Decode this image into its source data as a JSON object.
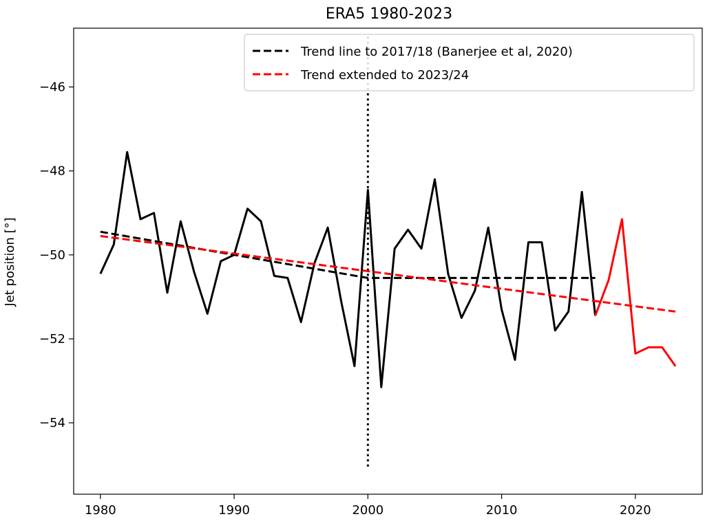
{
  "chart_data": {
    "type": "line",
    "title": "ERA5 1980-2023",
    "xlabel": "",
    "ylabel": "Jet position [°]",
    "xlim": [
      1978,
      2025
    ],
    "ylim": [
      -55.7,
      -44.6
    ],
    "xticks": [
      1980,
      1990,
      2000,
      2010,
      2020
    ],
    "yticks": [
      -46,
      -48,
      -50,
      -52,
      -54
    ],
    "ytick_labels": [
      "−46",
      "−48",
      "−50",
      "−52",
      "−54"
    ],
    "grid": false,
    "legend_position": "top-right",
    "series": [
      {
        "name": "",
        "style": "solid",
        "color": "#000000",
        "x": [
          1980,
          1981,
          1982,
          1983,
          1984,
          1985,
          1986,
          1987,
          1988,
          1989,
          1990,
          1991,
          1992,
          1993,
          1994,
          1995,
          1996,
          1997,
          1998,
          1999,
          2000,
          2001,
          2002,
          2003,
          2004,
          2005,
          2006,
          2007,
          2008,
          2009,
          2010,
          2011,
          2012,
          2013,
          2014,
          2015,
          2016,
          2017
        ],
        "y": [
          -50.45,
          -49.75,
          -47.55,
          -49.15,
          -49.0,
          -50.9,
          -49.2,
          -50.4,
          -51.4,
          -50.15,
          -50.0,
          -48.9,
          -49.2,
          -50.5,
          -50.55,
          -51.6,
          -50.2,
          -49.35,
          -51.1,
          -52.65,
          -48.45,
          -53.15,
          -49.85,
          -49.4,
          -49.85,
          -48.2,
          -50.45,
          -51.5,
          -50.85,
          -49.35,
          -51.3,
          -52.5,
          -49.7,
          -49.7,
          -51.8,
          -51.35,
          -48.5,
          -51.45
        ]
      },
      {
        "name": "",
        "style": "solid",
        "color": "#ff0000",
        "x": [
          2017,
          2018,
          2019,
          2020,
          2021,
          2022,
          2023
        ],
        "y": [
          -51.45,
          -50.6,
          -49.15,
          -52.35,
          -52.2,
          -52.2,
          -52.65
        ]
      },
      {
        "name": "Trend line to 2017/18 (Banerjee et al, 2020)",
        "style": "dashed",
        "color": "#000000",
        "x": [
          1980,
          2000,
          2017
        ],
        "y": [
          -49.45,
          -50.55,
          -50.55
        ]
      },
      {
        "name": "Trend extended to 2023/24",
        "style": "dashed",
        "color": "#ff0000",
        "x": [
          1980,
          2023
        ],
        "y": [
          -49.55,
          -51.35
        ]
      }
    ],
    "annotations": [
      {
        "type": "vertical-line",
        "style": "dotted",
        "color": "#000000",
        "x": 2000,
        "y_range": [
          -55.1,
          -44.8
        ]
      }
    ]
  }
}
